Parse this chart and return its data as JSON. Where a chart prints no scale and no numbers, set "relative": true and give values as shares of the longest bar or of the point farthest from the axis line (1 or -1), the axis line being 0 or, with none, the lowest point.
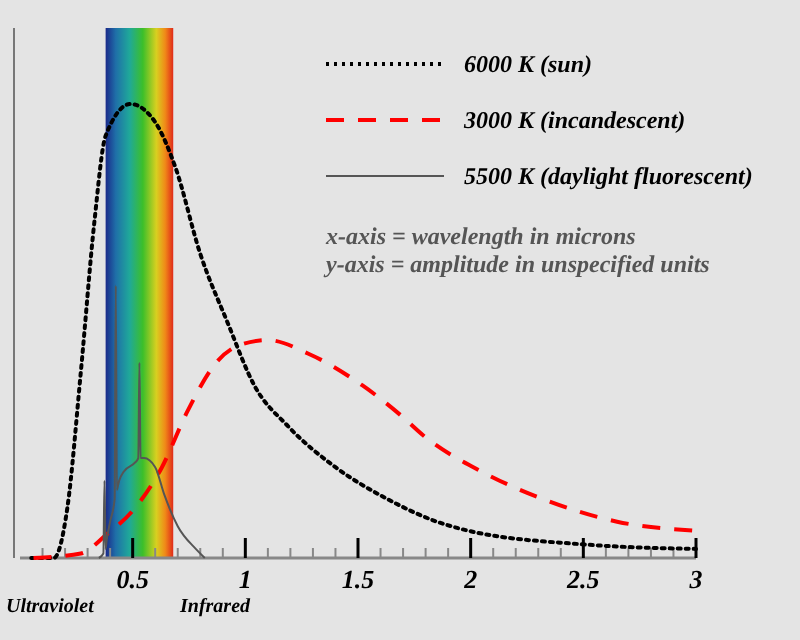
{
  "chart_data": {
    "type": "line",
    "relative": true,
    "xlim": [
      0,
      3
    ],
    "xticks": [
      {
        "value": 0.1,
        "label": null
      },
      {
        "value": 0.2,
        "label": null
      },
      {
        "value": 0.3,
        "label": null
      },
      {
        "value": 0.4,
        "label": null
      },
      0.5,
      {
        "value": 0.6,
        "label": null
      },
      {
        "value": 0.7,
        "label": null
      },
      {
        "value": 0.8,
        "label": null
      },
      {
        "value": 0.9,
        "label": null
      },
      1,
      {
        "value": 1.1,
        "label": null
      },
      {
        "value": 1.2,
        "label": null
      },
      {
        "value": 1.3,
        "label": null
      },
      {
        "value": 1.4,
        "label": null
      },
      1.5,
      {
        "value": 1.6,
        "label": null
      },
      {
        "value": 1.7,
        "label": null
      },
      {
        "value": 1.8,
        "label": null
      },
      {
        "value": 1.9,
        "label": null
      },
      2,
      {
        "value": 2.1,
        "label": null
      },
      {
        "value": 2.2,
        "label": null
      },
      {
        "value": 2.3,
        "label": null
      },
      {
        "value": 2.4,
        "label": null
      },
      2.5,
      {
        "value": 2.6,
        "label": null
      },
      {
        "value": 2.7,
        "label": null
      },
      {
        "value": 2.8,
        "label": null
      },
      {
        "value": 2.9,
        "label": null
      },
      3
    ],
    "series": [
      {
        "name": "6000 K (sun)",
        "color": "#000000",
        "line_style": "dotted",
        "x": [
          0.05,
          0.15,
          0.21,
          0.27,
          0.33,
          0.38,
          0.49,
          0.6,
          0.69,
          0.8,
          0.92,
          1.04,
          1.19,
          1.4,
          1.63,
          1.85,
          1.99,
          2.5,
          3.0
        ],
        "values": [
          0,
          0,
          0.11,
          0.41,
          0.74,
          0.93,
          1.0,
          0.96,
          0.86,
          0.67,
          0.52,
          0.38,
          0.29,
          0.2,
          0.13,
          0.08,
          0.06,
          0.03,
          0.02
        ]
      },
      {
        "name": "3000 K (incandescent)",
        "color": "#ff0000",
        "line_style": "dashed",
        "x": [
          0.06,
          0.27,
          0.38,
          0.51,
          0.63,
          0.74,
          0.87,
          0.98,
          1.1,
          1.28,
          1.52,
          1.7,
          1.79,
          2.05,
          2.32,
          2.65,
          3.0
        ],
        "values": [
          0,
          0.01,
          0.05,
          0.11,
          0.2,
          0.32,
          0.43,
          0.47,
          0.48,
          0.45,
          0.38,
          0.31,
          0.27,
          0.19,
          0.13,
          0.08,
          0.06
        ]
      },
      {
        "name": "5500 K (daylight fluorescent)",
        "color": "#555555",
        "line_style": "solid",
        "x": [
          0.35,
          0.37,
          0.375,
          0.38,
          0.385,
          0.4,
          0.42,
          0.425,
          0.43,
          0.435,
          0.44,
          0.46,
          0.51,
          0.525,
          0.53,
          0.535,
          0.55,
          0.6,
          0.64,
          0.7,
          0.78,
          0.82
        ],
        "values": [
          0,
          0.01,
          0.17,
          0.02,
          0.04,
          0.08,
          0.13,
          0.6,
          0.15,
          0.16,
          0.17,
          0.19,
          0.21,
          0.22,
          0.43,
          0.22,
          0.22,
          0.2,
          0.14,
          0.07,
          0.02,
          0
        ]
      }
    ],
    "bands": [
      {
        "axis": "x",
        "from": 0.38,
        "to": 0.68
      }
    ],
    "legend": "top right",
    "annotations": [
      "x-axis = wavelength in microns",
      "y-axis = amplitude in unspecified units",
      "Ultraviolet",
      "Infrared"
    ]
  }
}
